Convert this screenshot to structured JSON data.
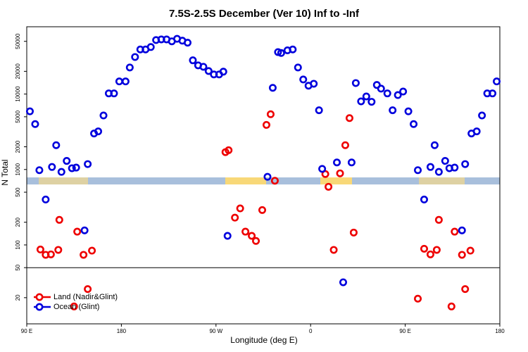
{
  "chart_data": {
    "type": "scatter",
    "title": "7.5S-2.5S December (Ver 10)   Inf to -Inf",
    "x_label": "Longitude (deg E)",
    "y_label": "N Total",
    "xlim": [
      90,
      540
    ],
    "xticks": [
      {
        "value": 90,
        "label": "90 E"
      },
      180,
      {
        "value": 270,
        "label": "90 W"
      },
      {
        "value": 360,
        "label": "0"
      },
      {
        "value": 450,
        "label": "90 E"
      },
      {
        "value": 540,
        "label": "180"
      }
    ],
    "ylim": [
      9,
      78000
    ],
    "ylog": true,
    "yticks": [
      20,
      50,
      100,
      200,
      500,
      1000,
      2000,
      5000,
      10000,
      20000,
      50000
    ],
    "y_split": 50,
    "legend": "lower left",
    "series": [
      {
        "name": "Land (Nadir&Glint)",
        "color": "#ee0000",
        "x": [
          103,
          108,
          113,
          120,
          121,
          138,
          135,
          144,
          148,
          152,
          279,
          282,
          288,
          293,
          298,
          304,
          308,
          314,
          318,
          322,
          326,
          374,
          377,
          382,
          388,
          393,
          397,
          401,
          462,
          468,
          474,
          480,
          482,
          494,
          497,
          504,
          507,
          512
        ],
        "values": [
          87,
          74,
          75,
          86,
          215,
          150,
          15.3,
          74,
          26,
          84,
          1700,
          1800,
          230,
          305,
          150,
          132,
          113,
          290,
          3900,
          5400,
          710,
          870,
          590,
          86,
          890,
          2100,
          4800,
          146,
          19.4,
          89,
          75,
          86,
          215,
          15.3,
          150,
          74,
          26,
          84
        ]
      },
      {
        "name": "Ocean (Glint)",
        "color": "#0000dd",
        "x": [
          93,
          98,
          102,
          108,
          114,
          118,
          123,
          128,
          133,
          137,
          145,
          148,
          154,
          158,
          163,
          168,
          173,
          178,
          184,
          188,
          193,
          198,
          203,
          208,
          213,
          218,
          223,
          228,
          233,
          238,
          243,
          248,
          253,
          258,
          263,
          268,
          273,
          277,
          281,
          319,
          324,
          329,
          332,
          338,
          343,
          348,
          353,
          358,
          363,
          368,
          371,
          385,
          391,
          399,
          403,
          408,
          413,
          418,
          423,
          427,
          433,
          438,
          443,
          448,
          453,
          458,
          462,
          468,
          474,
          478,
          482,
          488,
          492,
          497,
          504,
          507,
          513,
          518,
          523,
          528,
          533,
          537
        ],
        "values": [
          5900,
          4000,
          980,
          400,
          1080,
          2100,
          930,
          1300,
          1040,
          1060,
          156,
          1180,
          3000,
          3200,
          5200,
          10200,
          10200,
          14700,
          14700,
          22500,
          31000,
          39000,
          39000,
          42000,
          52000,
          53000,
          53000,
          50000,
          54000,
          51000,
          48000,
          28000,
          24000,
          23000,
          20200,
          18200,
          18200,
          19800,
          132,
          800,
          12100,
          36000,
          35000,
          38000,
          39000,
          22500,
          15600,
          12900,
          13700,
          6100,
          1020,
          1240,
          32,
          1240,
          14000,
          8000,
          9300,
          7900,
          13200,
          11800,
          10200,
          6100,
          9700,
          10800,
          5900,
          4000,
          980,
          400,
          1080,
          2100,
          930,
          1300,
          1040,
          1060,
          156,
          1180,
          3000,
          3200,
          5200,
          10200,
          10200,
          14700
        ]
      }
    ]
  }
}
